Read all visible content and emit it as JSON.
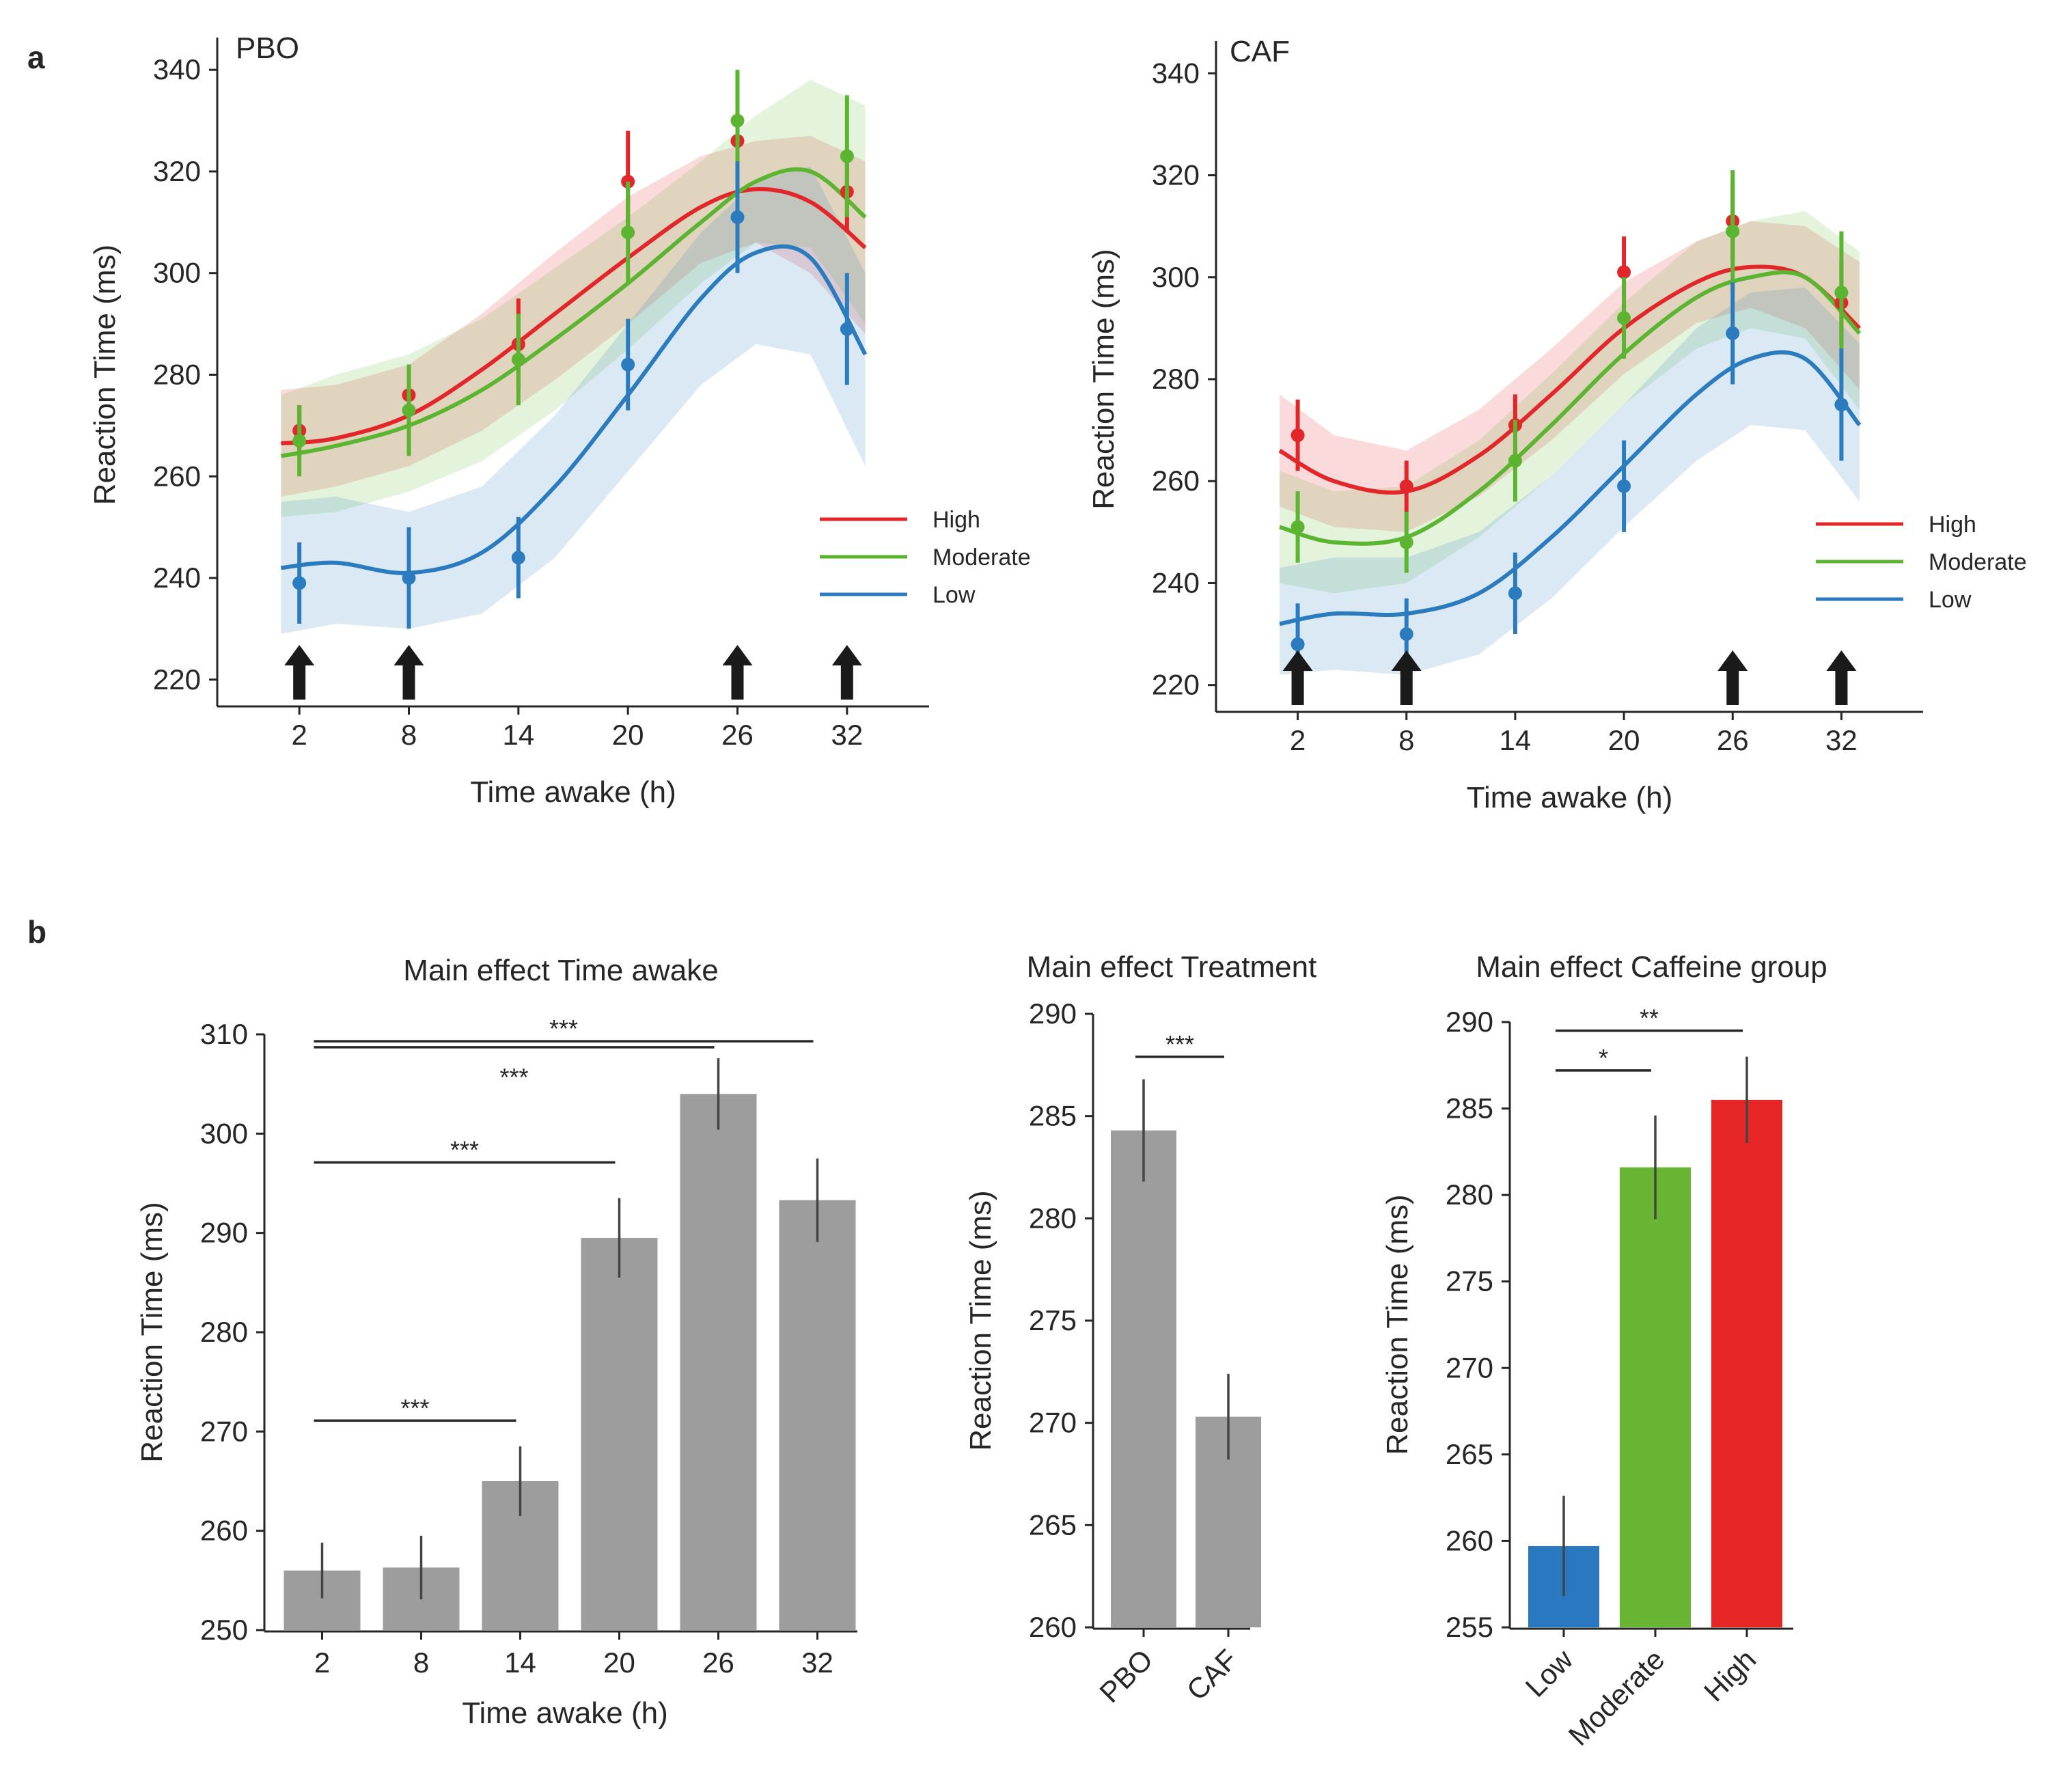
{
  "panels": {
    "a": "a",
    "b": "b"
  },
  "chart_data": [
    {
      "id": "pbo_line",
      "type": "line",
      "title": "PBO",
      "xlabel": "Time awake (h)",
      "ylabel": "Reaction Time (ms)",
      "x": [
        2,
        8,
        14,
        20,
        26,
        32
      ],
      "xticks": [
        "2",
        "8",
        "14",
        "20",
        "26",
        "32"
      ],
      "yticks": [
        "220",
        "240",
        "260",
        "280",
        "300",
        "320",
        "340"
      ],
      "ylim": [
        215,
        345
      ],
      "arrows_at": [
        2,
        8,
        26,
        32
      ],
      "legend": {
        "position": "right",
        "entries": [
          "High",
          "Moderate",
          "Low"
        ]
      },
      "series": [
        {
          "name": "High",
          "color": "#e2262a",
          "points": [
            269,
            276,
            286,
            318,
            326,
            316
          ],
          "errors": [
            5,
            6,
            9,
            10,
            10,
            8
          ],
          "fit_x": [
            1,
            4,
            8,
            12,
            16,
            20,
            24,
            27,
            30,
            33
          ],
          "fit": [
            266.5,
            267.5,
            272,
            281,
            292,
            303,
            313,
            316.5,
            314,
            305
          ],
          "band_low": [
            256,
            258,
            262,
            269,
            279,
            290,
            302,
            306,
            300,
            288
          ],
          "band_high": [
            277,
            278,
            282,
            292,
            304,
            315,
            323,
            326,
            327,
            322
          ]
        },
        {
          "name": "Moderate",
          "color": "#5cb531",
          "points": [
            267,
            273,
            283,
            308,
            330,
            323
          ],
          "errors": [
            7,
            9,
            9,
            10,
            10,
            12
          ],
          "fit_x": [
            1,
            4,
            8,
            12,
            16,
            20,
            24,
            27,
            30,
            33
          ],
          "fit": [
            264,
            266,
            270,
            277,
            287,
            298,
            310,
            318,
            320,
            311
          ],
          "band_low": [
            252,
            253,
            257,
            263,
            273,
            285,
            298,
            306,
            305,
            290
          ],
          "band_high": [
            276,
            280,
            284,
            291,
            301,
            311,
            322,
            331,
            338,
            333
          ]
        },
        {
          "name": "Low",
          "color": "#2b7bbf",
          "points": [
            239,
            240,
            244,
            282,
            311,
            289
          ],
          "errors": [
            8,
            10,
            8,
            9,
            11,
            11
          ],
          "fit_x": [
            1,
            4,
            8,
            12,
            16,
            20,
            24,
            27,
            30,
            33
          ],
          "fit": [
            242,
            243,
            241,
            245,
            258,
            276,
            295,
            304,
            303,
            284
          ],
          "band_low": [
            229,
            231,
            230,
            233,
            244,
            261,
            278,
            286,
            284,
            262
          ],
          "band_high": [
            255,
            256,
            253,
            258,
            272,
            290,
            308,
            318,
            321,
            300
          ]
        }
      ]
    },
    {
      "id": "caf_line",
      "type": "line",
      "title": "CAF",
      "xlabel": "Time awake (h)",
      "ylabel": "Reaction Time (ms)",
      "x": [
        2,
        8,
        14,
        20,
        26,
        32
      ],
      "xticks": [
        "2",
        "8",
        "14",
        "20",
        "26",
        "32"
      ],
      "yticks": [
        "220",
        "240",
        "260",
        "280",
        "300",
        "320",
        "340"
      ],
      "ylim": [
        215,
        345
      ],
      "arrows_at": [
        2,
        8,
        26,
        32
      ],
      "legend": {
        "position": "right",
        "entries": [
          "High",
          "Moderate",
          "Low"
        ]
      },
      "series": [
        {
          "name": "High",
          "color": "#e2262a",
          "points": [
            269,
            259,
            271,
            301,
            311,
            295
          ],
          "errors": [
            7,
            5,
            6,
            7,
            8,
            8
          ],
          "fit_x": [
            1,
            4,
            8,
            12,
            16,
            20,
            24,
            27,
            30,
            33
          ],
          "fit": [
            266,
            260,
            258,
            265,
            277,
            290,
            299,
            302,
            300,
            290
          ],
          "band_low": [
            255,
            251,
            250,
            257,
            268,
            281,
            291,
            294,
            290,
            278
          ],
          "band_high": [
            277,
            269,
            266,
            274,
            286,
            299,
            307,
            311,
            310,
            303
          ]
        },
        {
          "name": "Moderate",
          "color": "#5cb531",
          "points": [
            251,
            248,
            264,
            292,
            309,
            297
          ],
          "errors": [
            7,
            6,
            8,
            8,
            12,
            12
          ],
          "fit_x": [
            1,
            4,
            8,
            12,
            16,
            20,
            24,
            27,
            30,
            33
          ],
          "fit": [
            251,
            248,
            249,
            258,
            271,
            285,
            296,
            300,
            300,
            289
          ],
          "band_low": [
            240,
            238,
            240,
            249,
            261,
            275,
            286,
            290,
            288,
            274
          ],
          "band_high": [
            262,
            258,
            259,
            268,
            281,
            295,
            307,
            311,
            313,
            305
          ]
        },
        {
          "name": "Low",
          "color": "#2b7bbf",
          "points": [
            228,
            230,
            238,
            259,
            289,
            275
          ],
          "errors": [
            8,
            7,
            8,
            9,
            10,
            11
          ],
          "fit_x": [
            1,
            4,
            8,
            12,
            16,
            20,
            24,
            27,
            30,
            33
          ],
          "fit": [
            232,
            234,
            234,
            238,
            249,
            263,
            277,
            284,
            284,
            271
          ],
          "band_low": [
            222,
            223,
            222,
            226,
            237,
            251,
            264,
            271,
            270,
            256
          ],
          "band_high": [
            243,
            245,
            245,
            250,
            261,
            275,
            290,
            297,
            298,
            287
          ]
        }
      ]
    },
    {
      "id": "time_bar",
      "type": "bar",
      "title": "Main effect Time awake",
      "xlabel": "Time awake (h)",
      "ylabel": "Reaction Time (ms)",
      "categories": [
        "2",
        "8",
        "14",
        "20",
        "26",
        "32"
      ],
      "values": [
        256,
        256.3,
        265,
        289.5,
        304,
        293.3
      ],
      "errors": [
        2.8,
        3.2,
        3.5,
        4.0,
        3.6,
        4.2
      ],
      "colors": [
        "#9d9d9d",
        "#9d9d9d",
        "#9d9d9d",
        "#9d9d9d",
        "#9d9d9d",
        "#9d9d9d"
      ],
      "ylim": [
        250,
        310
      ],
      "yticks": [
        "250",
        "260",
        "270",
        "280",
        "290",
        "300",
        "310"
      ],
      "significance": [
        {
          "from": 0,
          "to": 5,
          "y": 309.3,
          "label": "***",
          "label_pos": "above"
        },
        {
          "from": 0,
          "to": 4,
          "y": 308.7,
          "label": "***",
          "label_pos": "below"
        },
        {
          "from": 0,
          "to": 3,
          "y": 297.1,
          "label": "***",
          "label_pos": "above"
        },
        {
          "from": 0,
          "to": 2,
          "y": 271.1,
          "label": "***",
          "label_pos": "above"
        }
      ]
    },
    {
      "id": "treatment_bar",
      "type": "bar",
      "title": "Main effect Treatment",
      "xlabel": "",
      "ylabel": "Reaction Time (ms)",
      "categories": [
        "PBO",
        "CAF"
      ],
      "values": [
        284.3,
        270.3
      ],
      "errors": [
        2.5,
        2.1
      ],
      "colors": [
        "#9d9d9d",
        "#9d9d9d"
      ],
      "ylim": [
        260,
        290
      ],
      "yticks": [
        "260",
        "265",
        "270",
        "275",
        "280",
        "285",
        "290"
      ],
      "significance": [
        {
          "from": 0,
          "to": 1,
          "y": 287.9,
          "label": "***",
          "label_pos": "above"
        }
      ]
    },
    {
      "id": "caffeine_bar",
      "type": "bar",
      "title": "Main effect Caffeine group",
      "xlabel": "",
      "ylabel": "Reaction Time (ms)",
      "categories": [
        "Low",
        "Moderate",
        "High"
      ],
      "values": [
        259.7,
        281.6,
        285.5
      ],
      "errors": [
        2.9,
        3.0,
        2.5
      ],
      "colors": [
        "#2a78bf",
        "#67b533",
        "#e62626"
      ],
      "ylim": [
        255,
        290
      ],
      "yticks": [
        "255",
        "260",
        "265",
        "270",
        "275",
        "280",
        "285",
        "290"
      ],
      "significance": [
        {
          "from": 0,
          "to": 2,
          "y": 289.5,
          "label": "**",
          "label_pos": "above"
        },
        {
          "from": 0,
          "to": 1,
          "y": 287.2,
          "label": "*",
          "label_pos": "above"
        }
      ]
    }
  ]
}
